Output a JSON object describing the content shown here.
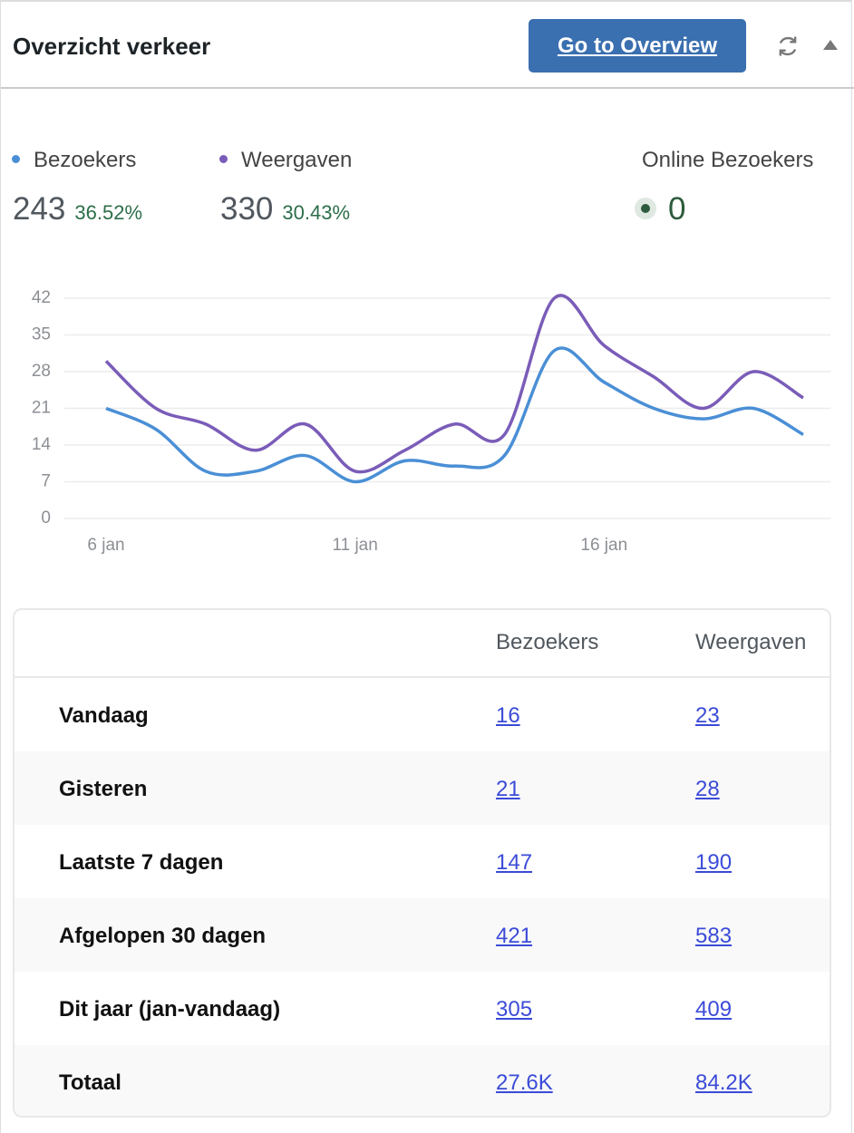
{
  "header": {
    "title": "Overzicht verkeer",
    "button": "Go to Overview"
  },
  "summary": {
    "items": [
      {
        "name": "Bezoekers",
        "total": 243,
        "change": "36.52%"
      },
      {
        "name": "Weergaven",
        "total": 330,
        "change": "30.43%"
      }
    ],
    "online": {
      "label": "Online Bezoekers",
      "value": 0
    }
  },
  "chart_data": {
    "type": "line",
    "categories": [
      "6 jan",
      null,
      null,
      null,
      null,
      "11 jan",
      null,
      null,
      null,
      null,
      "16 jan",
      null,
      null,
      null,
      null
    ],
    "series": [
      {
        "name": "Bezoekers",
        "color": "#4a8fd6",
        "values": [
          21,
          17,
          9,
          9,
          12,
          7,
          11,
          10,
          12,
          32,
          26,
          21,
          19,
          21,
          16
        ]
      },
      {
        "name": "Weergaven",
        "color": "#7a5cb8",
        "values": [
          30,
          21,
          18,
          13,
          18,
          9,
          13,
          18,
          16,
          42,
          33,
          27,
          21,
          28,
          23
        ]
      }
    ],
    "ylim": [
      0,
      42
    ],
    "yticks": [
      0,
      7,
      14,
      21,
      28,
      35,
      42
    ],
    "grid": true
  },
  "table": {
    "columns": [
      "Bezoekers",
      "Weergaven"
    ],
    "rows": [
      [
        "Vandaag",
        "16",
        "23"
      ],
      [
        "Gisteren",
        "21",
        "28"
      ],
      [
        "Laatste 7 dagen",
        "147",
        "190"
      ],
      [
        "Afgelopen 30 dagen",
        "421",
        "583"
      ],
      [
        "Dit jaar (jan-vandaag)",
        "305",
        "409"
      ],
      [
        "Totaal",
        "27.6K",
        "84.2K"
      ]
    ]
  }
}
